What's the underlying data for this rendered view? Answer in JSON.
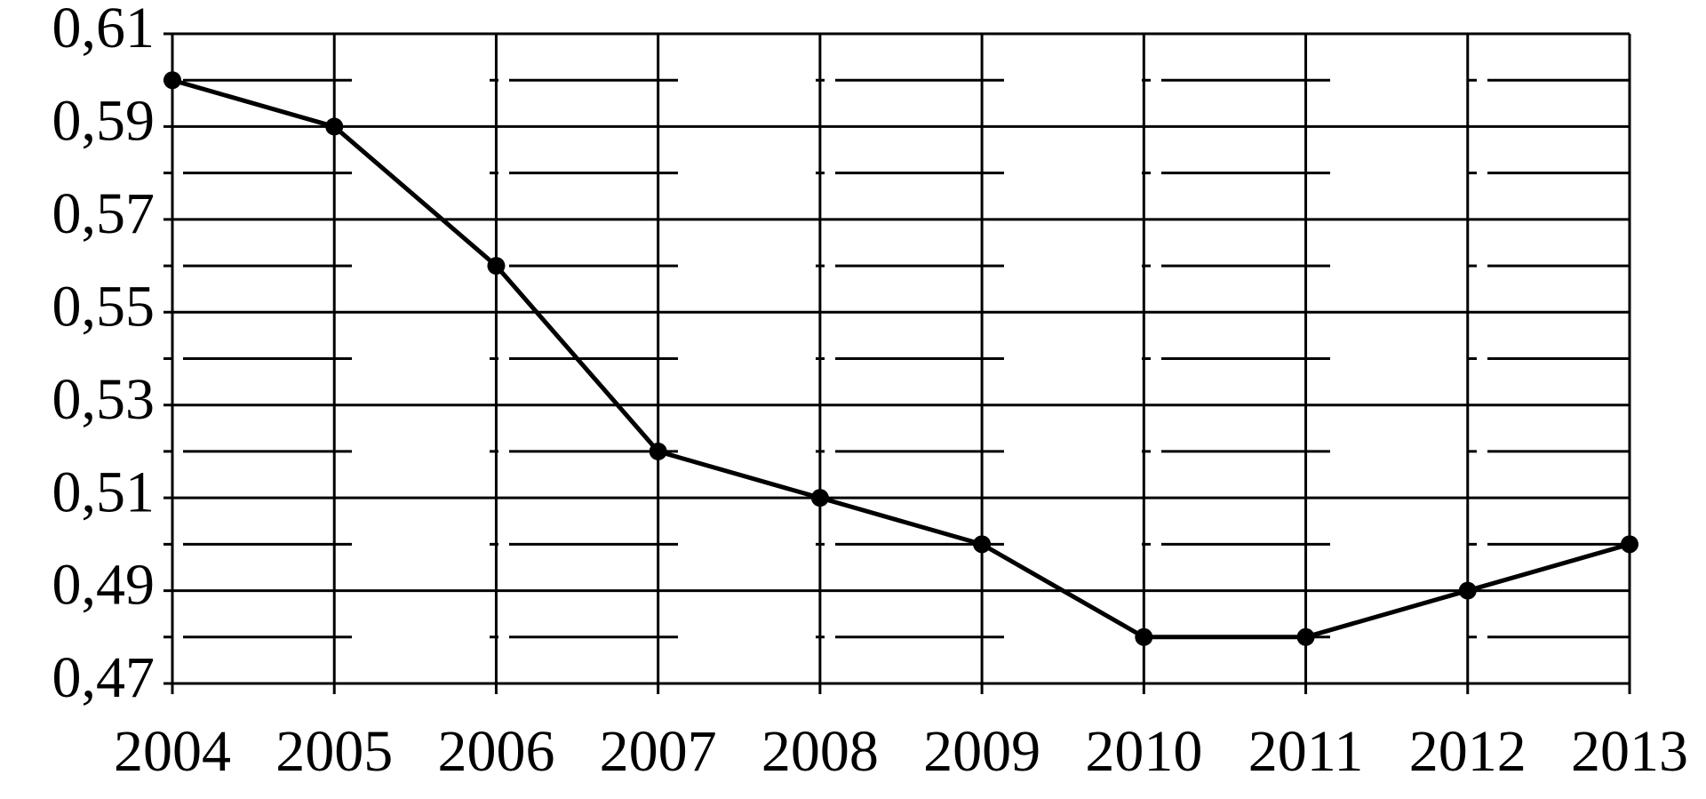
{
  "chart_data": {
    "type": "line",
    "x": [
      2004,
      2005,
      2006,
      2007,
      2008,
      2009,
      2010,
      2011,
      2012,
      2013
    ],
    "values": [
      0.6,
      0.59,
      0.56,
      0.52,
      0.51,
      0.5,
      0.48,
      0.48,
      0.49,
      0.5
    ],
    "color": "#000000",
    "xlim": [
      2004,
      2013
    ],
    "xticks": [
      2004,
      2005,
      2006,
      2007,
      2008,
      2009,
      2010,
      2011,
      2012,
      2013
    ],
    "ylim": [
      0.47,
      0.61
    ],
    "yticks": [
      {
        "value": 0.47,
        "label": "0,47"
      },
      {
        "value": 0.49,
        "label": "0,49"
      },
      {
        "value": 0.51,
        "label": "0,51"
      },
      {
        "value": 0.53,
        "label": "0,53"
      },
      {
        "value": 0.55,
        "label": "0,55"
      },
      {
        "value": 0.57,
        "label": "0,57"
      },
      {
        "value": 0.59,
        "label": "0,59"
      },
      {
        "value": 0.61,
        "label": "0,61"
      }
    ],
    "minor_yticks": [
      0.48,
      0.5,
      0.52,
      0.54,
      0.56,
      0.58,
      0.6
    ],
    "grid": true
  }
}
